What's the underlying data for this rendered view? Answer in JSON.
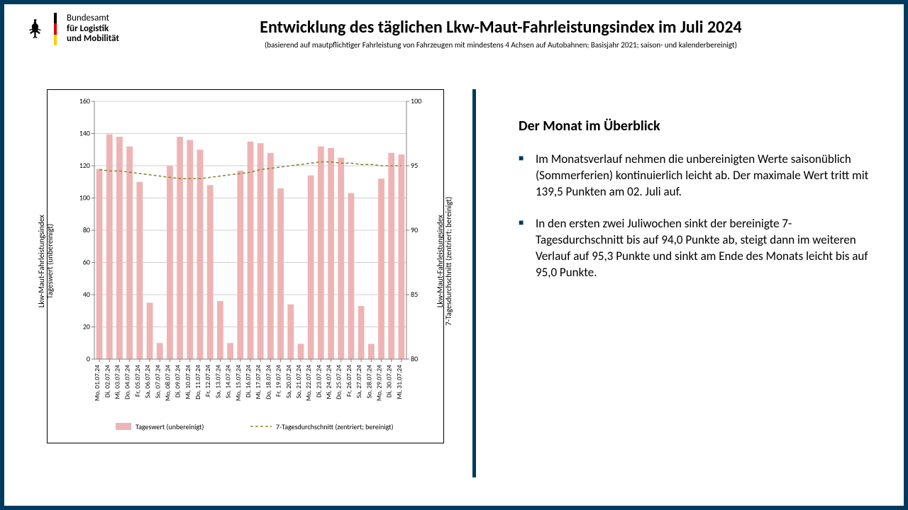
{
  "logo": {
    "line1": "Bundesamt",
    "line2": "für Logistik",
    "line3": "und Mobilität",
    "flag_colors": [
      "#000000",
      "#dd0000",
      "#ffce00"
    ]
  },
  "title": "Entwicklung des täglichen Lkw-Maut-Fahrleistungsindex im Juli 2024",
  "subtitle": "(basierend auf mautpflichtiger Fahrleistung von Fahrzeugen mit mindestens 4 Achsen auf Autobahnen;  Basisjahr 2021; saison- und kalenderbereinigt)",
  "chart": {
    "type": "bar+line",
    "y1_label_top": "Lkw-Maut-Fahrleistungsindex",
    "y1_label_bot": "Tageswert (unbereinigt)",
    "y2_label_top": "Lkw-Maut-Fahrleistungsindex",
    "y2_label_bot": "7-Tagesdurchschnitt (zentriert; bereinigt)",
    "y1_min": 0,
    "y1_max": 160,
    "y1_step": 20,
    "y2_min": 80,
    "y2_max": 100,
    "y2_step": 5,
    "bar_color": "#eeb4b4",
    "line_color": "#8a8a3c",
    "grid_color": "#bfbfbf",
    "axis_color": "#808080",
    "text_color": "#000000",
    "bar_width_ratio": 0.62,
    "axis_fontsize": 10,
    "tick_fontsize": 10,
    "legend_fontsize": 10,
    "x_labels": [
      "Mo, 01.07.24",
      "Di, 02.07.24",
      "Mi, 03.07.24",
      "Do, 04.07.24",
      "Fr, 05.07.24",
      "Sa, 06.07.24",
      "So, 07.07.24",
      "Mo, 08.07.24",
      "Di, 09.07.24",
      "Mi, 10.07.24",
      "Do, 11.07.24",
      "Fr, 12.07.24",
      "Sa, 13.07.24",
      "So, 14.07.24",
      "Mo, 15.07.24",
      "Di, 16.07.24",
      "Mi, 17.07.24",
      "Do, 18.07.24",
      "Fr, 19.07.24",
      "Sa, 20.07.24",
      "So, 21.07.24",
      "Mo, 22.07.24",
      "Di, 23.07.24",
      "Mi, 24.07.24",
      "Do, 25.07.24",
      "Fr, 26.07.24",
      "Sa, 27.07.24",
      "So, 28.07.24",
      "Mo, 29.07.24",
      "Di, 30.07.24",
      "Mi, 31.07.24"
    ],
    "bar_values": [
      118,
      139.5,
      138,
      132,
      110,
      35,
      10,
      120,
      138,
      136,
      130,
      108,
      36,
      10,
      117,
      135,
      134,
      128,
      106,
      34,
      9.5,
      114,
      132,
      131,
      125,
      103,
      33,
      9.5,
      112,
      128,
      127
    ],
    "line_values": [
      94.7,
      94.6,
      94.6,
      94.5,
      94.4,
      94.3,
      94.2,
      94.1,
      94.0,
      94.0,
      94.0,
      94.1,
      94.2,
      94.3,
      94.4,
      94.5,
      94.7,
      94.8,
      94.9,
      95.0,
      95.1,
      95.2,
      95.3,
      95.3,
      95.2,
      95.2,
      95.1,
      95.1,
      95.0,
      95.0,
      95.0
    ],
    "legend": {
      "bar": "Tageswert (unbereinigt)",
      "line": "7-Tagesdurchschnitt (zentriert; bereinigt)"
    }
  },
  "overview": {
    "heading": "Der Monat im Überblick",
    "bullets": [
      "Im Monatsverlauf nehmen die unbereinigten Werte saisonüblich (Sommerferien) kontinuierlich leicht ab. Der maximale Wert tritt mit 139,5 Punkten am 02. Juli auf.",
      "In den ersten zwei Juliwochen sinkt der bereinigte 7-Tagesdurchschnitt bis auf 94,0 Punkte ab, steigt dann im weiteren Verlauf auf 95,3 Punkte und sinkt am Ende des Monats leicht bis auf 95,0 Punkte."
    ]
  },
  "frame_color": "#003a5d"
}
